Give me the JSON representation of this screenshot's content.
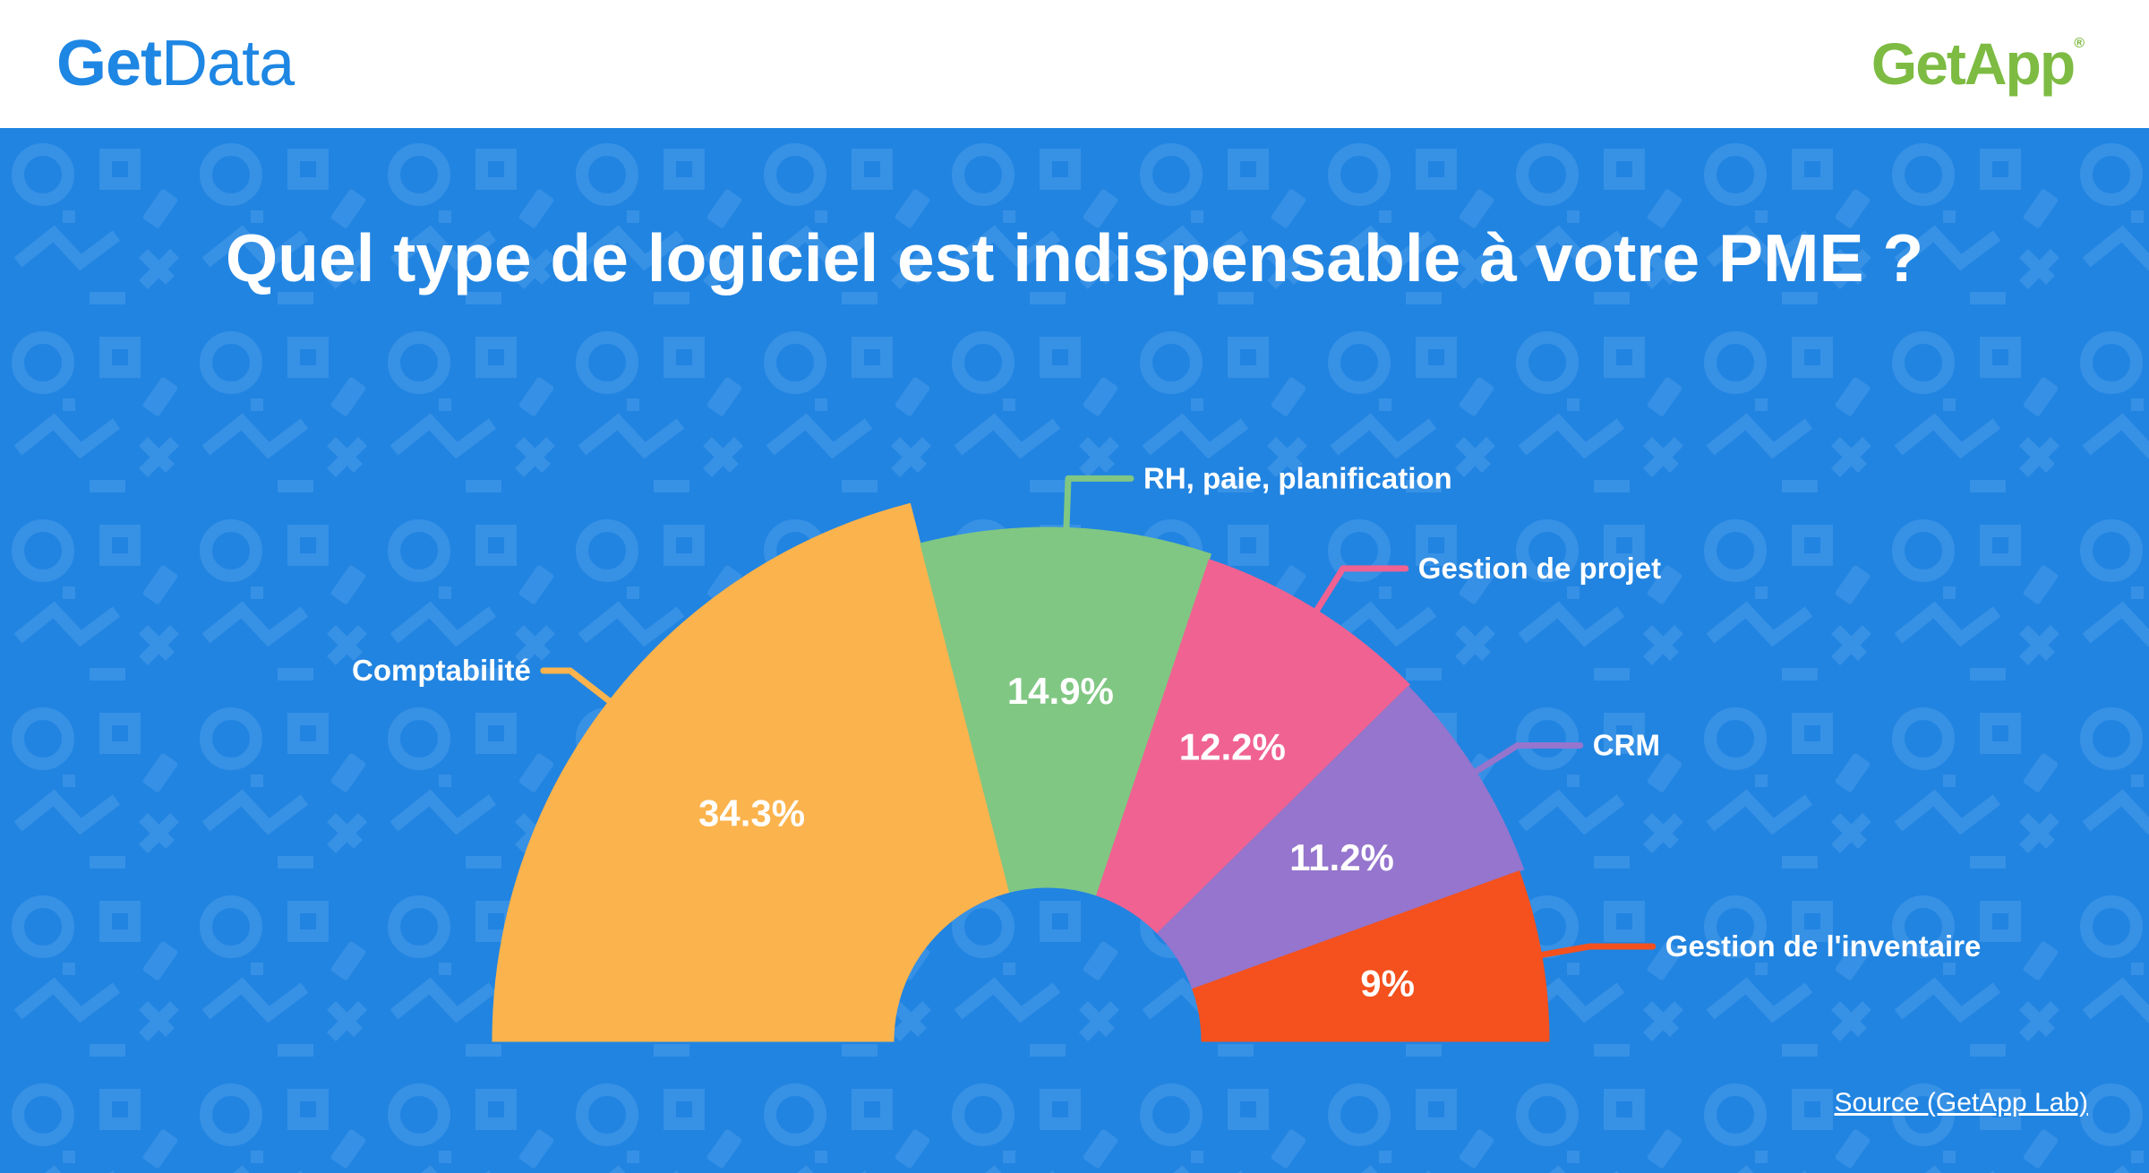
{
  "header": {
    "brand_left_bold": "Get",
    "brand_left_light": "Data",
    "brand_right": "GetApp",
    "brand_right_mark": "®"
  },
  "colors": {
    "background": "#2184e1",
    "brand_blue": "#1e86e3",
    "brand_green": "#7dbb42",
    "series": [
      "#fbb34d",
      "#80c783",
      "#f06291",
      "#9575cd",
      "#f4511e"
    ]
  },
  "chart_data": {
    "type": "pie",
    "variant": "half-donut",
    "title": "Quel type de logiciel est indispensable à votre PME ?",
    "categories": [
      "Comptabilité",
      "RH, paie, planification",
      "Gestion de projet",
      "CRM",
      "Gestion de l'inventaire"
    ],
    "values": [
      34.3,
      14.9,
      12.2,
      11.2,
      9
    ],
    "value_labels": [
      "34.3%",
      "14.9%",
      "12.2%",
      "11.2%",
      "9%"
    ],
    "unit": "%"
  },
  "source": {
    "label": "Source (GetApp Lab)"
  }
}
